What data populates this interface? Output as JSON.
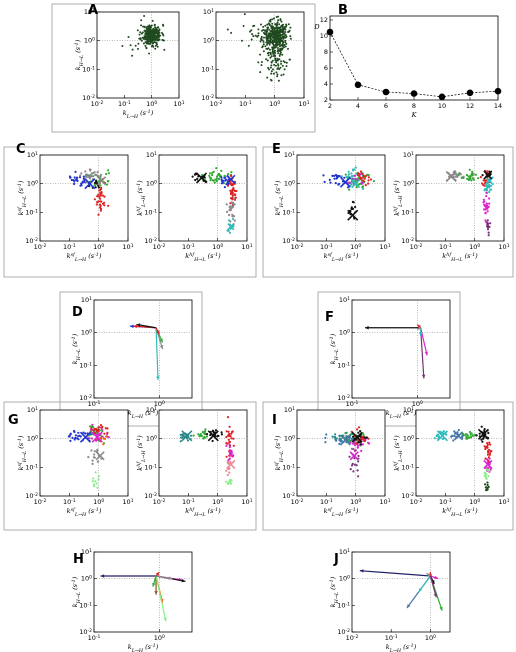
{
  "figure": {
    "panels": [
      "A",
      "B",
      "C",
      "D",
      "E",
      "F",
      "G",
      "H",
      "I",
      "J"
    ],
    "colors": {
      "dark_green": "#1f4a1f",
      "blue": "#2233cc",
      "green": "#33aa33",
      "red": "#dd2222",
      "grey": "#8a8a8a",
      "cyan": "#33bbbb",
      "black": "#111111",
      "magenta": "#dd22cc",
      "purple": "#773377",
      "orange": "#ee6611",
      "pink": "#ee8899",
      "light_green": "#88ee88",
      "teal": "#2a8a8a",
      "steelblue": "#4477aa",
      "navy": "#222266",
      "brown": "#885522"
    }
  },
  "axes": {
    "x_kLH": "k_{L→H} (s^{-1})",
    "y_kHL": "k_{H→L} (s^{-1})",
    "x_kLH_sf": "k^{sf}_{L→H} (s^{-1})",
    "y_kHL_sf": "k^{sf}_{H→L} (s^{-1})",
    "x_kHL_hf": "k^{hf}_{H→L} (s^{-1})",
    "y_kLH_hf": "k^{hf}_{L→H} (s^{-1})",
    "log_ticks_1": [
      "10^{-2}",
      "10^{-1}",
      "10^{0}",
      "10^{1}"
    ],
    "log_ticks_2": [
      "10^{-1}",
      "10^{0}"
    ]
  },
  "chart_data": [
    {
      "panel": "B",
      "type": "line",
      "xlabel": "K",
      "ylabel": "D",
      "x": [
        2,
        4,
        6,
        8,
        10,
        12,
        14
      ],
      "y": [
        10.5,
        3.9,
        3.0,
        2.8,
        2.4,
        2.9,
        3.1
      ],
      "xticks": [
        2,
        4,
        6,
        8,
        10,
        12,
        14
      ],
      "yticks": [
        2,
        4,
        6,
        8,
        10,
        12
      ],
      "xlim": [
        2,
        14
      ],
      "ylim": [
        2,
        12.5
      ]
    }
  ]
}
